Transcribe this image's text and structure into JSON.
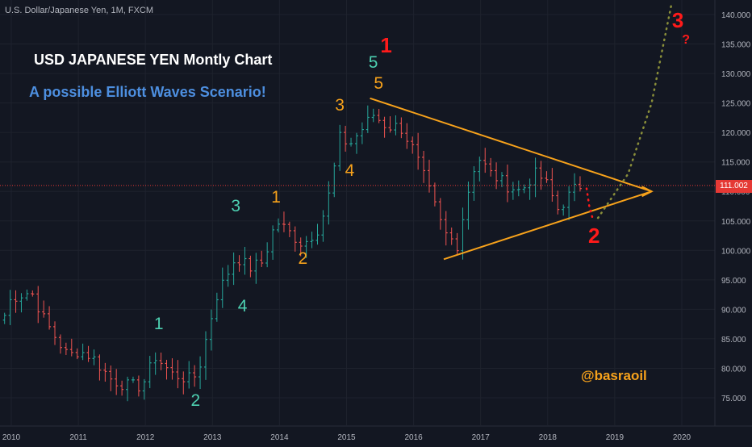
{
  "header": {
    "ticker": "U.S. Dollar/Japanese Yen, 1M, FXCM",
    "title": "USD JAPANESE YEN Montly Chart",
    "subtitle": "A possible Elliott Waves Scenario!",
    "author": "@basraoil"
  },
  "current_price": "111.002",
  "colors": {
    "background": "#131722",
    "up": "#26a69a",
    "down": "#ef5350",
    "pattern": "#f7a21b",
    "wave_teal": "#4dd0b1",
    "wave_red": "#ff1a1a"
  },
  "wave_labels": [
    {
      "text": "1",
      "color": "#4dd0b1",
      "date": 2012.2,
      "price": 87.5
    },
    {
      "text": "2",
      "color": "#4dd0b1",
      "date": 2012.75,
      "price": 74.5
    },
    {
      "text": "3",
      "color": "#4dd0b1",
      "date": 2013.35,
      "price": 107.5
    },
    {
      "text": "4",
      "color": "#4dd0b1",
      "date": 2013.45,
      "price": 90.5
    },
    {
      "text": "1",
      "color": "#f7a21b",
      "date": 2013.95,
      "price": 109.0
    },
    {
      "text": "2",
      "color": "#f7a21b",
      "date": 2014.35,
      "price": 98.5
    },
    {
      "text": "3",
      "color": "#f7a21b",
      "date": 2014.9,
      "price": 124.5
    },
    {
      "text": "4",
      "color": "#f7a21b",
      "date": 2015.05,
      "price": 113.5
    },
    {
      "text": "5",
      "color": "#4dd0b1",
      "date": 2015.4,
      "price": 131.8
    },
    {
      "text": "5",
      "color": "#f7a21b",
      "date": 2015.48,
      "price": 128.2
    },
    {
      "text": "1",
      "color": "#ff1a1a",
      "date": 2015.6,
      "price": 134.8
    },
    {
      "text": "2",
      "color": "#ff1a1a",
      "date": 2018.7,
      "price": 102.5
    },
    {
      "text": "3",
      "color": "#ff1a1a",
      "date": 2019.95,
      "price": 139.0
    },
    {
      "text": "?",
      "color": "#ff1a1a",
      "date": 2020.1,
      "price": 135.0
    }
  ],
  "chart_data": {
    "type": "candlestick",
    "title": "USD JAPANESE YEN Montly Chart",
    "subtitle": "A possible Elliott Waves Scenario!",
    "xlabel": "",
    "ylabel": "",
    "x_ticks": [
      "2010",
      "2011",
      "2012",
      "2013",
      "2014",
      "2015",
      "2016",
      "2017",
      "2018",
      "2019",
      "2020"
    ],
    "y_ticks": [
      "75.000",
      "80.000",
      "85.000",
      "90.000",
      "95.000",
      "100.000",
      "105.000",
      "110.000",
      "115.000",
      "120.000",
      "125.000",
      "130.000",
      "135.000",
      "140.000"
    ],
    "xlim": [
      2009.85,
      2020.5
    ],
    "ylim": [
      70,
      142
    ],
    "grid": true,
    "last_price": 111.002,
    "anchors": [
      [
        2009.9,
        89
      ],
      [
        2010.0,
        92
      ],
      [
        2010.3,
        93
      ],
      [
        2010.5,
        88
      ],
      [
        2010.85,
        82
      ],
      [
        2011.0,
        83
      ],
      [
        2011.2,
        82
      ],
      [
        2011.5,
        78
      ],
      [
        2011.75,
        77
      ],
      [
        2011.95,
        77
      ],
      [
        2012.15,
        82
      ],
      [
        2012.4,
        79
      ],
      [
        2012.7,
        78
      ],
      [
        2012.8,
        80
      ],
      [
        2013.05,
        92
      ],
      [
        2013.35,
        99
      ],
      [
        2013.55,
        97
      ],
      [
        2013.75,
        98
      ],
      [
        2013.95,
        105
      ],
      [
        2014.35,
        101
      ],
      [
        2014.6,
        104
      ],
      [
        2014.75,
        110
      ],
      [
        2014.9,
        119
      ],
      [
        2015.05,
        118
      ],
      [
        2015.4,
        123
      ],
      [
        2015.6,
        121
      ],
      [
        2015.8,
        121
      ],
      [
        2016.0,
        117
      ],
      [
        2016.3,
        108
      ],
      [
        2016.45,
        103
      ],
      [
        2016.65,
        101
      ],
      [
        2016.85,
        112
      ],
      [
        2016.95,
        116
      ],
      [
        2017.15,
        113
      ],
      [
        2017.4,
        111
      ],
      [
        2017.6,
        110
      ],
      [
        2017.8,
        113
      ],
      [
        2017.95,
        112
      ],
      [
        2018.15,
        107
      ],
      [
        2018.3,
        109
      ],
      [
        2018.45,
        111
      ],
      [
        2018.55,
        111
      ]
    ],
    "triangle": {
      "upper": [
        [
          2015.35,
          125.8
        ],
        [
          2019.55,
          110.0
        ]
      ],
      "lower": [
        [
          2016.45,
          98.5
        ],
        [
          2019.55,
          110.0
        ]
      ]
    },
    "projection_c": [
      [
        2018.58,
        110.5
      ],
      [
        2018.62,
        107.5
      ],
      [
        2018.68,
        105.0
      ]
    ],
    "projection_3": [
      [
        2018.75,
        105.5
      ],
      [
        2019.2,
        113.0
      ],
      [
        2019.55,
        125.0
      ],
      [
        2019.85,
        142.0
      ]
    ]
  }
}
